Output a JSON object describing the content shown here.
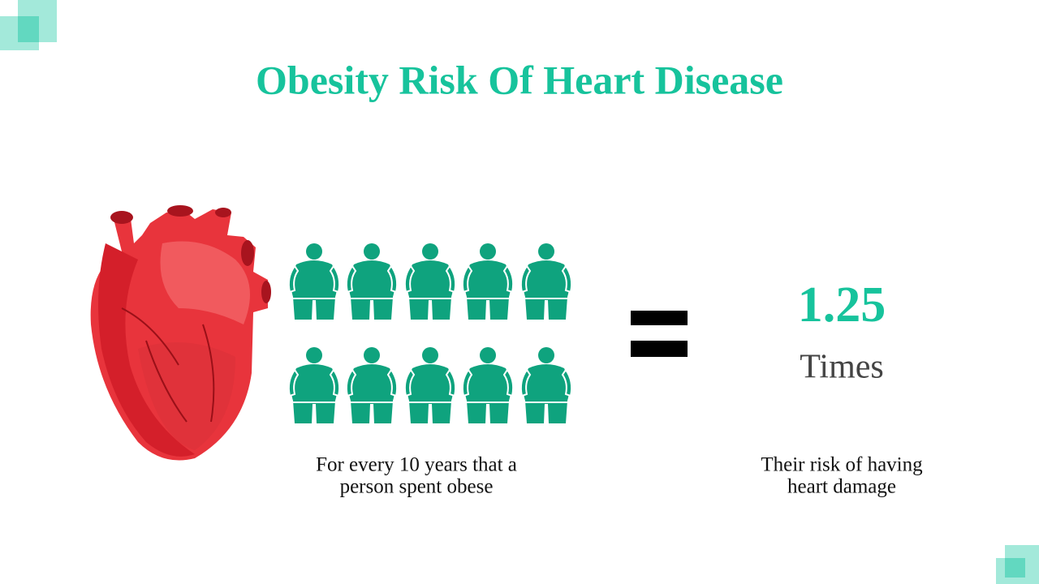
{
  "title": "Obesity Risk Of Heart Disease",
  "left_caption": [
    "For every 10 years that a",
    "person spent obese"
  ],
  "result": {
    "value": 1.25,
    "unit": "Times"
  },
  "right_caption": [
    "Their risk of having",
    "heart damage"
  ]
}
